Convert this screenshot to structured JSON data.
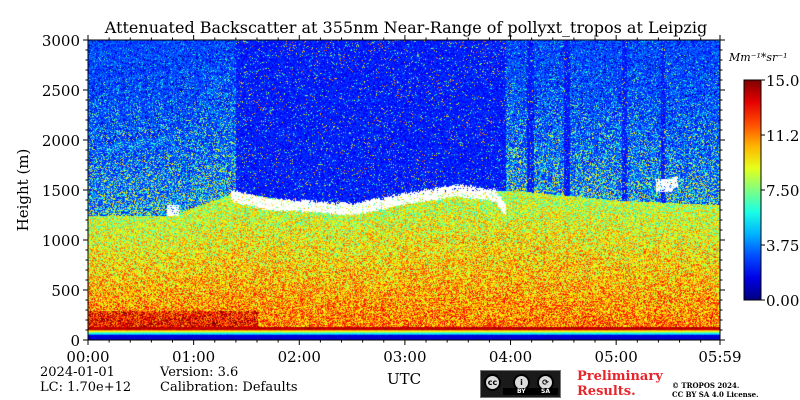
{
  "chart_data": {
    "type": "heatmap",
    "title": "Attenuated Backscatter at 355nm Near-Range of pollyxt_tropos at Leipzig",
    "xlabel": "UTC",
    "ylabel": "Height (m)",
    "xlim_hours": [
      0,
      5.983
    ],
    "ylim": [
      0,
      3000
    ],
    "x_ticks": [
      {
        "value": 0,
        "label": "00:00"
      },
      {
        "value": 1,
        "label": "01:00"
      },
      {
        "value": 2,
        "label": "02:00"
      },
      {
        "value": 3,
        "label": "03:00"
      },
      {
        "value": 4,
        "label": "04:00"
      },
      {
        "value": 5,
        "label": "05:00"
      },
      {
        "value": 5.983,
        "label": "05:59"
      }
    ],
    "y_ticks": [
      {
        "value": 0,
        "label": "0"
      },
      {
        "value": 500,
        "label": "500"
      },
      {
        "value": 1000,
        "label": "1000"
      },
      {
        "value": 1500,
        "label": "1500"
      },
      {
        "value": 2000,
        "label": "2000"
      },
      {
        "value": 2500,
        "label": "2500"
      },
      {
        "value": 3000,
        "label": "3000"
      }
    ],
    "colorbar": {
      "unit": "Mm⁻¹*sr⁻¹",
      "min": 0.0,
      "max": 15.0,
      "ticks": [
        {
          "value": 0,
          "label": "0.00"
        },
        {
          "value": 3.75,
          "label": "3.75"
        },
        {
          "value": 7.5,
          "label": "7.50"
        },
        {
          "value": 11.25,
          "label": "11.2"
        },
        {
          "value": 15,
          "label": "15.0"
        }
      ]
    },
    "features": {
      "boundary_layer_top_m": [
        {
          "t": 0.0,
          "h": 1250
        },
        {
          "t": 0.8,
          "h": 1250
        },
        {
          "t": 1.4,
          "h": 1480
        },
        {
          "t": 2.0,
          "h": 1380
        },
        {
          "t": 2.5,
          "h": 1350
        },
        {
          "t": 3.0,
          "h": 1450
        },
        {
          "t": 3.5,
          "h": 1500
        },
        {
          "t": 4.0,
          "h": 1500
        },
        {
          "t": 4.5,
          "h": 1450
        },
        {
          "t": 5.0,
          "h": 1400
        },
        {
          "t": 5.983,
          "h": 1350
        }
      ],
      "clear_air_column": {
        "t_start": 1.4,
        "t_end": 3.95
      },
      "clear_spikes": [
        {
          "t0": 1.55,
          "t1": 1.75
        },
        {
          "t0": 2.05,
          "t1": 2.35
        },
        {
          "t0": 3.3,
          "t1": 3.45
        },
        {
          "t0": 4.15,
          "t1": 4.22
        },
        {
          "t0": 4.5,
          "t1": 4.56
        },
        {
          "t0": 5.05,
          "t1": 5.1
        },
        {
          "t0": 5.42,
          "t1": 5.46
        }
      ],
      "cloud_layer": [
        {
          "t": 1.35,
          "h": 1450
        },
        {
          "t": 1.7,
          "h": 1360
        },
        {
          "t": 2.0,
          "h": 1350
        },
        {
          "t": 2.5,
          "h": 1310
        },
        {
          "t": 3.0,
          "h": 1420
        },
        {
          "t": 3.5,
          "h": 1500
        },
        {
          "t": 3.85,
          "h": 1450
        },
        {
          "t": 3.95,
          "h": 1300
        }
      ],
      "cloud_patches": [
        {
          "t": 0.8,
          "h": 1300,
          "dt": 0.06,
          "dh": 60
        },
        {
          "t": 5.45,
          "h": 1550,
          "dt": 0.08,
          "dh": 70
        },
        {
          "t": 5.55,
          "h": 1580,
          "dt": 0.03,
          "dh": 60
        }
      ]
    }
  },
  "meta": {
    "date": "2024-01-01",
    "lc": "LC: 1.70e+12",
    "version": "Version: 3.6",
    "calibration": "Calibration: Defaults",
    "preliminary_line1": "Preliminary",
    "preliminary_line2": "Results.",
    "copyright_line1": "© TROPOS 2024.",
    "copyright_line2": "CC BY SA 4.0 License."
  },
  "license_badge": {
    "icons": [
      "cc-icon",
      "by-icon",
      "sa-icon"
    ],
    "icon_text": [
      "cc",
      "i",
      "⟳"
    ],
    "strip_by": "BY",
    "strip_sa": "SA"
  },
  "colors": {
    "text": "#000000",
    "preliminary": "#e8242b"
  }
}
